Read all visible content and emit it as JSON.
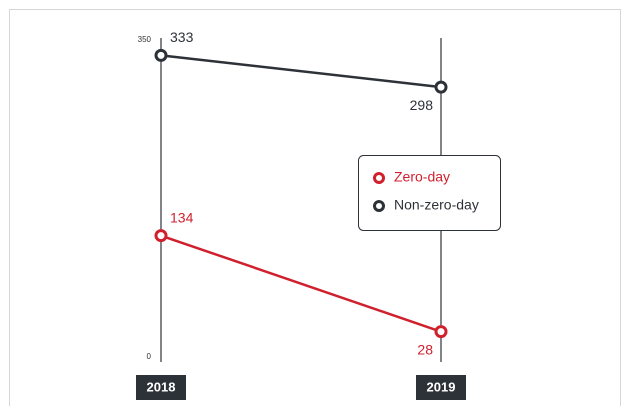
{
  "chart_data": {
    "type": "line",
    "categories": [
      "2018",
      "2019"
    ],
    "series": [
      {
        "name": "Zero-day",
        "color": "#d0202e",
        "values": [
          134,
          28
        ]
      },
      {
        "name": "Non-zero-day",
        "color": "#2d3238",
        "values": [
          333,
          298
        ]
      }
    ],
    "ylim": [
      0,
      350
    ],
    "yticks": [
      0,
      350
    ]
  }
}
